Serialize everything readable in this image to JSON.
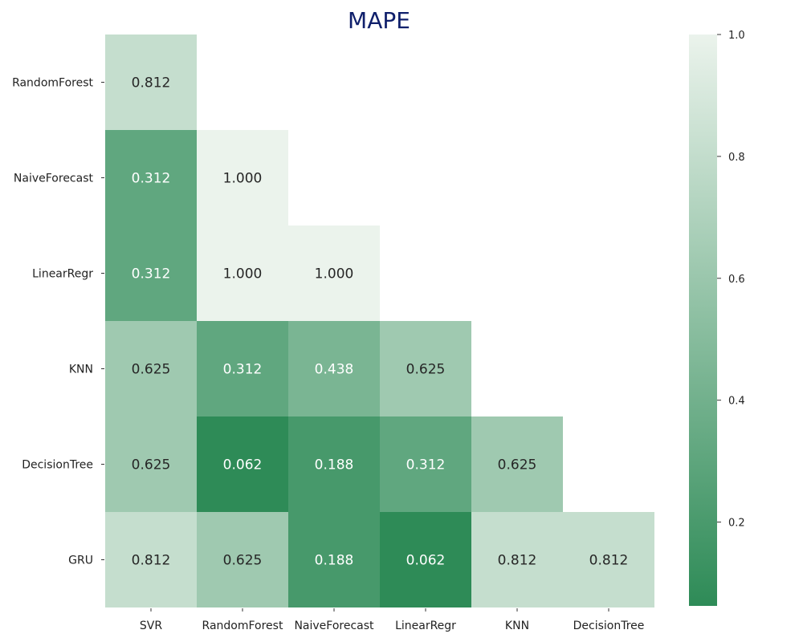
{
  "chart_data": {
    "type": "heatmap",
    "title": "MAPE",
    "x_labels": [
      "SVR",
      "RandomForest",
      "NaiveForecast",
      "LinearRegr",
      "KNN",
      "DecisionTree"
    ],
    "y_labels": [
      "RandomForest",
      "NaiveForecast",
      "LinearRegr",
      "KNN",
      "DecisionTree",
      "GRU"
    ],
    "values": [
      [
        0.812,
        null,
        null,
        null,
        null,
        null
      ],
      [
        0.312,
        1.0,
        null,
        null,
        null,
        null
      ],
      [
        0.312,
        1.0,
        1.0,
        null,
        null,
        null
      ],
      [
        0.625,
        0.312,
        0.438,
        0.625,
        null,
        null
      ],
      [
        0.625,
        0.062,
        0.188,
        0.312,
        0.625,
        null
      ],
      [
        0.812,
        0.625,
        0.188,
        0.062,
        0.812,
        0.812
      ]
    ],
    "value_format": "0.000",
    "colorbar": {
      "min": 0.0625,
      "max": 1.0,
      "ticks": [
        0.2,
        0.4,
        0.6,
        0.8,
        1.0
      ],
      "tick_labels": [
        "0.2",
        "0.4",
        "0.6",
        "0.8",
        "1.0"
      ],
      "color_low": "#2e8b57",
      "color_high": "#ebf3ec"
    },
    "masked": "upper triangle"
  }
}
